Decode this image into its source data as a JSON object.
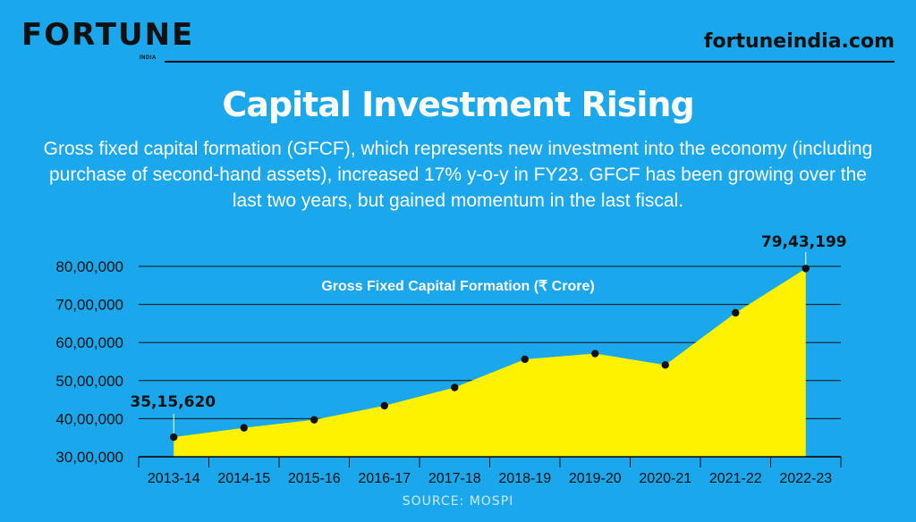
{
  "brand": {
    "logo": "FORTUNE",
    "logo_sub": "INDIA",
    "site": "fortuneindia.com"
  },
  "headline": {
    "title": "Capital Investment Rising",
    "subtitle": "Gross fixed capital formation (GFCF), which represents new investment into the economy (including purchase of second-hand assets), increased 17% y-o-y in FY23. GFCF has been growing over the last two years, but gained momentum in the last fiscal."
  },
  "source": "SOURCE: MOSPI",
  "colors": {
    "background": "#1aa7ec",
    "area_fill": "#fff200",
    "marker": "#111111",
    "gridline": "#111111"
  },
  "chart_data": {
    "type": "area",
    "title": "Gross Fixed Capital Formation (₹ Crore)",
    "categories": [
      "2013-14",
      "2014-15",
      "2015-16",
      "2016-17",
      "2017-18",
      "2018-19",
      "2019-20",
      "2020-21",
      "2021-22",
      "2022-23"
    ],
    "values": [
      3515620,
      3760000,
      3970000,
      4340000,
      4820000,
      5560000,
      5710000,
      5410000,
      6780000,
      7943199
    ],
    "y_ticks": [
      {
        "value": 3000000,
        "label": "30,00,000"
      },
      {
        "value": 4000000,
        "label": "40,00,000"
      },
      {
        "value": 5000000,
        "label": "50,00,000"
      },
      {
        "value": 6000000,
        "label": "60,00,000"
      },
      {
        "value": 7000000,
        "label": "70,00,000"
      },
      {
        "value": 8000000,
        "label": "80,00,000"
      }
    ],
    "ylim": [
      3000000,
      8000000
    ],
    "annotations": [
      {
        "index": 0,
        "label": "35,15,620"
      },
      {
        "index": 9,
        "label": "79,43,199"
      }
    ],
    "grid": true
  }
}
